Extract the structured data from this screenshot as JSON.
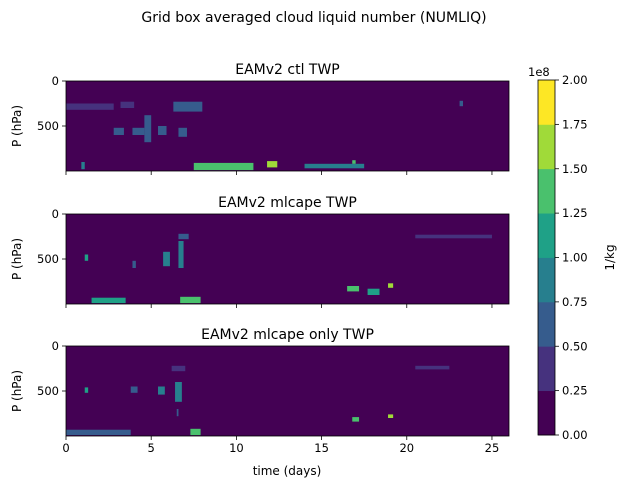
{
  "chart_data": {
    "type": "heatmap",
    "title": "Grid box averaged cloud liquid number (NUMLIQ)",
    "xlabel": "time (days)",
    "xlim": [
      0,
      26
    ],
    "x_ticks": [
      0,
      5,
      10,
      15,
      20,
      25
    ],
    "ylim": [
      1000,
      0
    ],
    "y_ticks": [
      0,
      500
    ],
    "colorbar": {
      "label": "1/kg",
      "multiplier": "1e8",
      "range": [
        0,
        200000000
      ],
      "boundaries": [
        "0.00",
        "0.25",
        "0.50",
        "0.75",
        "1.00",
        "1.25",
        "1.50",
        "1.75",
        "2.00"
      ],
      "colors": [
        "#440154",
        "#46327e",
        "#365c8d",
        "#277f8e",
        "#1fa187",
        "#4ac16d",
        "#a0da39",
        "#fde725"
      ]
    },
    "panels": [
      {
        "title": "EAMv2 ctl TWP",
        "ylabel": "P (hPa)",
        "features": [
          {
            "t0": 0.0,
            "t1": 2.8,
            "p0": 250,
            "p1": 320,
            "level": 1
          },
          {
            "t0": 3.2,
            "t1": 4.0,
            "p0": 230,
            "p1": 300,
            "level": 1
          },
          {
            "t0": 6.3,
            "t1": 8.0,
            "p0": 230,
            "p1": 340,
            "level": 2
          },
          {
            "t0": 2.8,
            "t1": 3.4,
            "p0": 520,
            "p1": 600,
            "level": 2
          },
          {
            "t0": 3.9,
            "t1": 4.6,
            "p0": 520,
            "p1": 600,
            "level": 2
          },
          {
            "t0": 4.6,
            "t1": 5.0,
            "p0": 380,
            "p1": 680,
            "level": 2
          },
          {
            "t0": 5.4,
            "t1": 5.9,
            "p0": 500,
            "p1": 600,
            "level": 2
          },
          {
            "t0": 6.6,
            "t1": 7.1,
            "p0": 520,
            "p1": 620,
            "level": 2
          },
          {
            "t0": 0.9,
            "t1": 1.1,
            "p0": 900,
            "p1": 980,
            "level": 3
          },
          {
            "t0": 7.5,
            "t1": 11.0,
            "p0": 910,
            "p1": 990,
            "level": 5
          },
          {
            "t0": 11.8,
            "t1": 12.4,
            "p0": 890,
            "p1": 960,
            "level": 6
          },
          {
            "t0": 14.0,
            "t1": 17.5,
            "p0": 920,
            "p1": 970,
            "level": 3
          },
          {
            "t0": 16.8,
            "t1": 17.0,
            "p0": 880,
            "p1": 920,
            "level": 5
          },
          {
            "t0": 23.1,
            "t1": 23.3,
            "p0": 220,
            "p1": 280,
            "level": 2
          }
        ]
      },
      {
        "title": "EAMv2 mlcape TWP",
        "ylabel": "P (hPa)",
        "features": [
          {
            "t0": 1.1,
            "t1": 1.3,
            "p0": 450,
            "p1": 520,
            "level": 4
          },
          {
            "t0": 3.9,
            "t1": 4.1,
            "p0": 520,
            "p1": 600,
            "level": 2
          },
          {
            "t0": 5.7,
            "t1": 6.1,
            "p0": 420,
            "p1": 580,
            "level": 3
          },
          {
            "t0": 6.6,
            "t1": 6.9,
            "p0": 300,
            "p1": 600,
            "level": 3
          },
          {
            "t0": 6.6,
            "t1": 7.2,
            "p0": 220,
            "p1": 280,
            "level": 2
          },
          {
            "t0": 1.5,
            "t1": 3.5,
            "p0": 930,
            "p1": 990,
            "level": 4
          },
          {
            "t0": 6.7,
            "t1": 7.9,
            "p0": 920,
            "p1": 990,
            "level": 5
          },
          {
            "t0": 16.5,
            "t1": 17.2,
            "p0": 800,
            "p1": 860,
            "level": 5
          },
          {
            "t0": 17.7,
            "t1": 18.4,
            "p0": 830,
            "p1": 900,
            "level": 4
          },
          {
            "t0": 18.9,
            "t1": 19.2,
            "p0": 770,
            "p1": 820,
            "level": 6
          },
          {
            "t0": 20.5,
            "t1": 25.0,
            "p0": 230,
            "p1": 270,
            "level": 1
          }
        ]
      },
      {
        "title": "EAMv2 mlcape only TWP",
        "ylabel": "P (hPa)",
        "features": [
          {
            "t0": 1.1,
            "t1": 1.3,
            "p0": 460,
            "p1": 520,
            "level": 4
          },
          {
            "t0": 3.8,
            "t1": 4.2,
            "p0": 450,
            "p1": 520,
            "level": 2
          },
          {
            "t0": 5.4,
            "t1": 5.8,
            "p0": 450,
            "p1": 540,
            "level": 3
          },
          {
            "t0": 6.4,
            "t1": 6.8,
            "p0": 400,
            "p1": 620,
            "level": 3
          },
          {
            "t0": 6.5,
            "t1": 6.6,
            "p0": 700,
            "p1": 780,
            "level": 2
          },
          {
            "t0": 6.2,
            "t1": 7.0,
            "p0": 220,
            "p1": 280,
            "level": 1
          },
          {
            "t0": 0.0,
            "t1": 3.8,
            "p0": 930,
            "p1": 990,
            "level": 2
          },
          {
            "t0": 7.3,
            "t1": 7.9,
            "p0": 920,
            "p1": 990,
            "level": 5
          },
          {
            "t0": 16.8,
            "t1": 17.2,
            "p0": 790,
            "p1": 840,
            "level": 5
          },
          {
            "t0": 18.9,
            "t1": 19.2,
            "p0": 760,
            "p1": 800,
            "level": 6
          },
          {
            "t0": 20.5,
            "t1": 22.5,
            "p0": 220,
            "p1": 260,
            "level": 1
          }
        ]
      }
    ]
  }
}
